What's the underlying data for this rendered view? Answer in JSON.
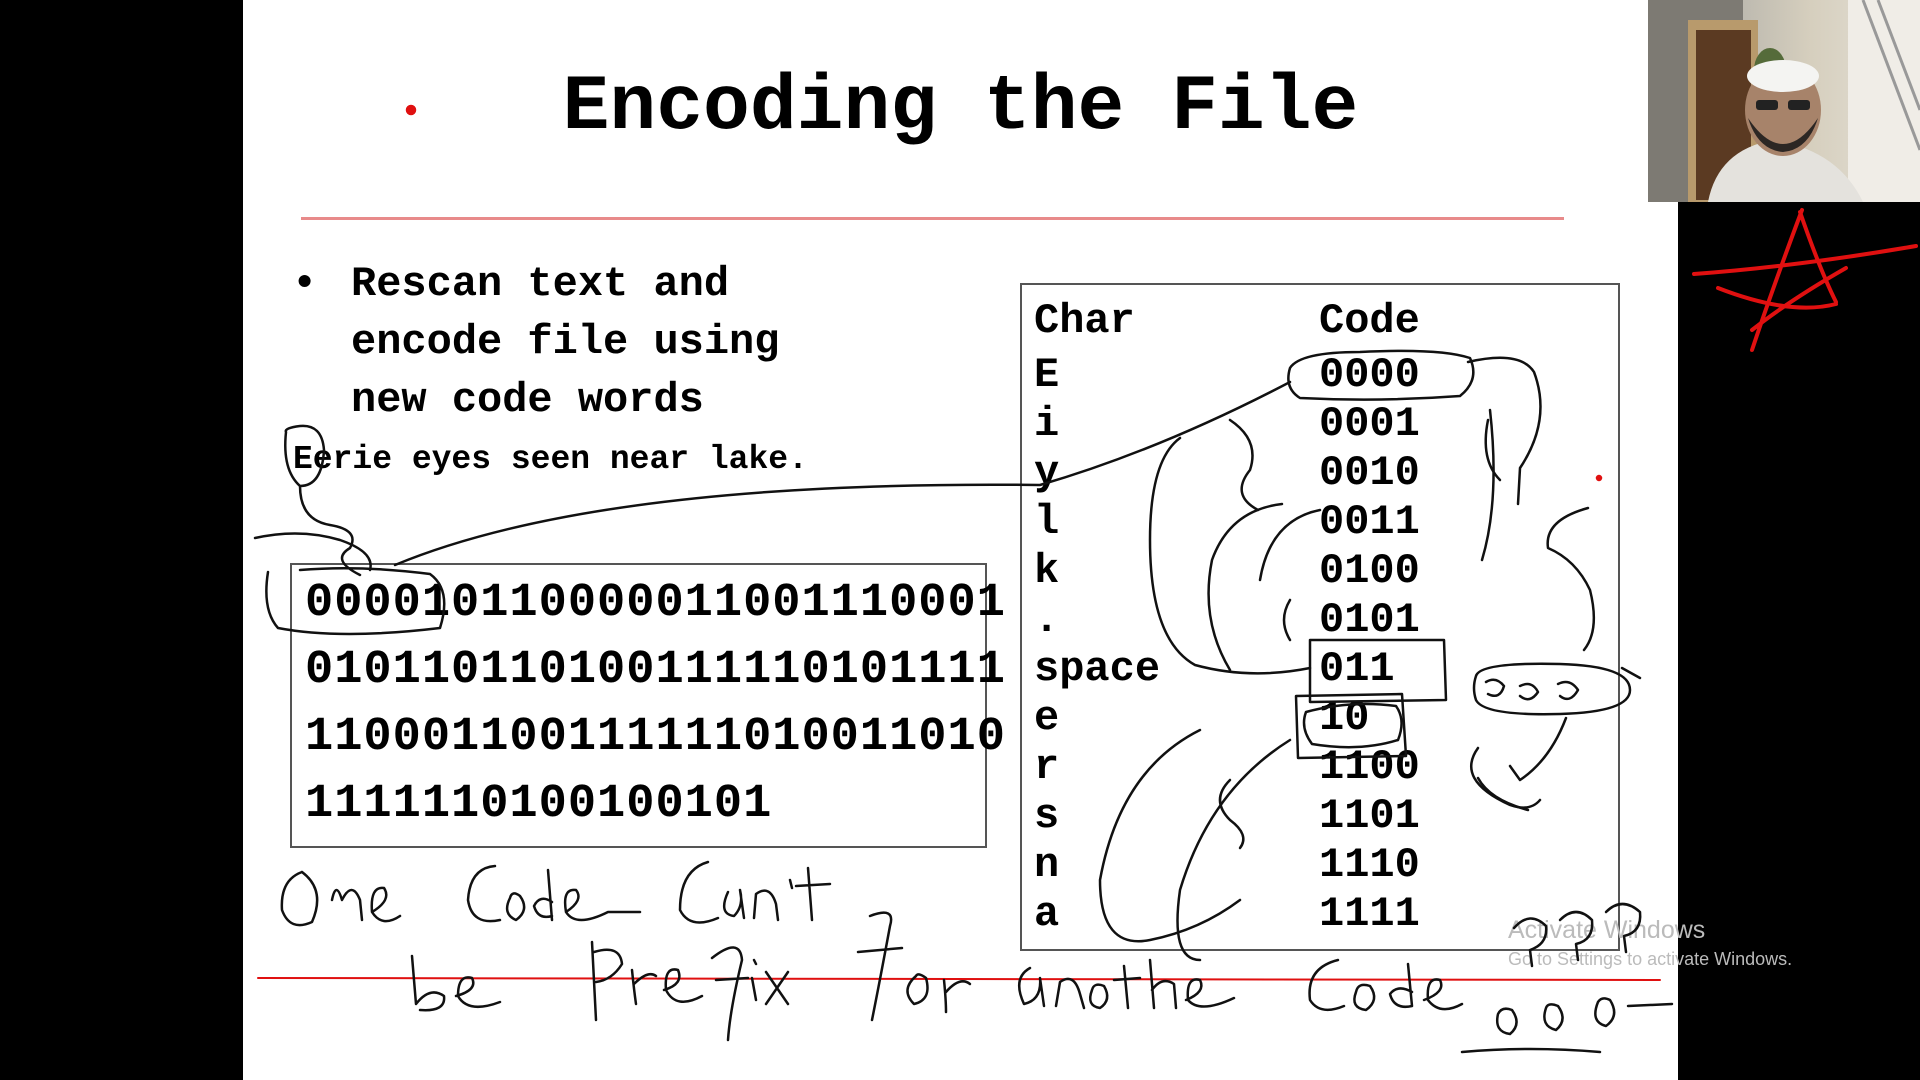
{
  "slide": {
    "title": "Encoding the File",
    "bullet_symbol": "•",
    "bullet_lines": [
      "Rescan text and",
      "encode file using",
      "new code words"
    ],
    "sentence": "Eerie eyes seen near lake.",
    "encoded_lines": [
      "000010110000011001110001",
      "010110110100111110101111",
      "110001100111111010011010",
      "1111110100100101"
    ],
    "table": {
      "header_char": "Char",
      "header_code": "Code",
      "rows": [
        {
          "char": "E",
          "code": "0000"
        },
        {
          "char": "i",
          "code": "0001"
        },
        {
          "char": "y",
          "code": "0010"
        },
        {
          "char": "l",
          "code": "0011"
        },
        {
          "char": "k",
          "code": "0100"
        },
        {
          "char": ".",
          "code": "0101"
        },
        {
          "char": "space",
          "code": "011"
        },
        {
          "char": "e",
          "code": "10"
        },
        {
          "char": "r",
          "code": "1100"
        },
        {
          "char": "s",
          "code": "1101"
        },
        {
          "char": "n",
          "code": "1110"
        },
        {
          "char": "a",
          "code": "1111"
        }
      ]
    }
  },
  "annotations": {
    "handwriting_line1": "One Code Can't",
    "handwriting_line2": "be Prefix for another code",
    "handwriting_marks": "???",
    "ink_color": "#000000",
    "highlight_ink_color": "#e01010"
  },
  "watermark": {
    "line1": "Activate Windows",
    "line2": "Go to Settings to activate Windows."
  },
  "webcam": {
    "label": "presenter-video"
  }
}
